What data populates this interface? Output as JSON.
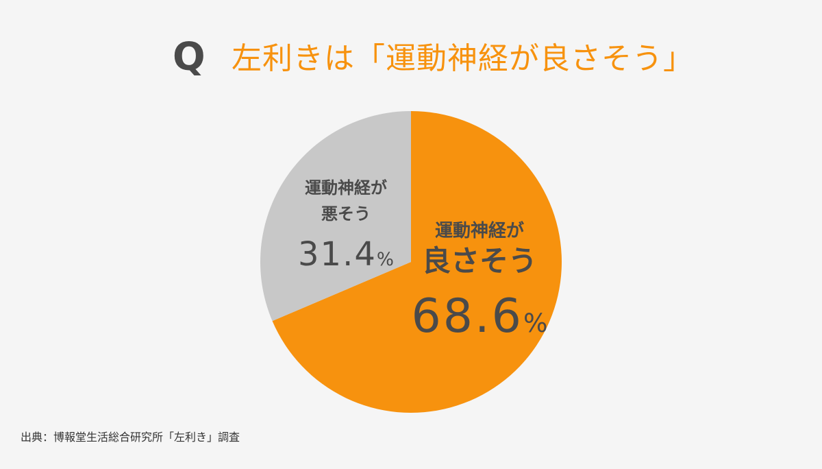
{
  "title": {
    "q_mark": "Q",
    "question": "左利きは「運動神経が良さそう」"
  },
  "colors": {
    "accent": "#f7920e",
    "gray_slice": "#c8c8c8",
    "text": "#4a4a4a",
    "background": "#f5f5f5"
  },
  "chart_data": {
    "type": "pie",
    "title": "左利きは「運動神経が良さそう」",
    "start": "12 o'clock, clockwise",
    "slices": [
      {
        "label_line1": "運動神経が",
        "label_line2": "良さそう",
        "value": 68.6,
        "value_text": "68.6",
        "unit": "%",
        "color": "#f7920e"
      },
      {
        "label_line1": "運動神経が",
        "label_line2": "悪そう",
        "value": 31.4,
        "value_text": "31.4",
        "unit": "%",
        "color": "#c8c8c8"
      }
    ]
  },
  "source": "出典：博報堂生活総合研究所「左利き」調査"
}
